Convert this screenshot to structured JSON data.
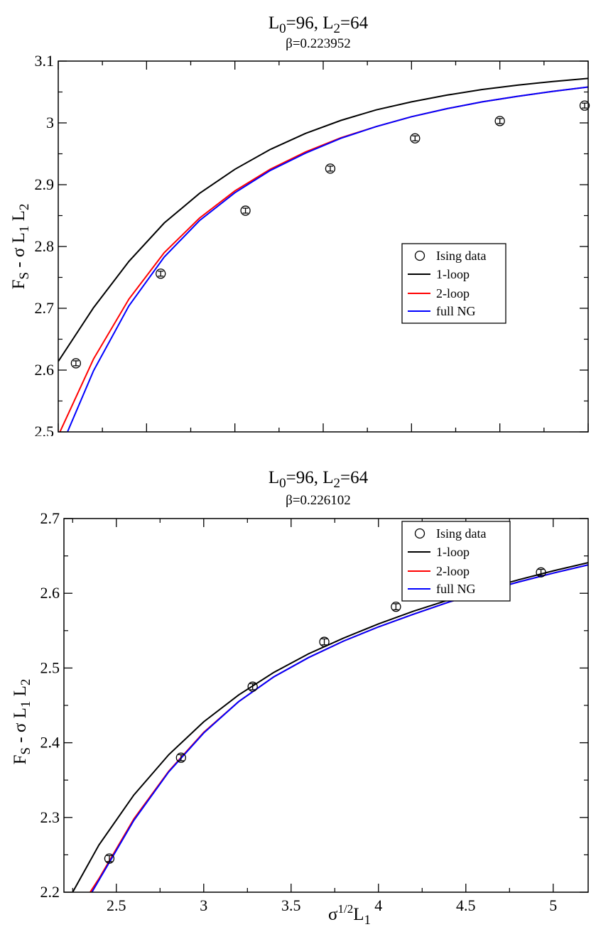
{
  "chart_data": [
    {
      "type": "scatter",
      "title": "L0=96,  L2=64",
      "title_parts": {
        "main": "L",
        "sub0": "0",
        "mid": "=96,  L",
        "sub2": "2",
        "tail": "=64"
      },
      "subtitle": "β=0.223952",
      "xlabel": "",
      "ylabel_parts": {
        "f": "F",
        "fs": "S",
        "mid": " - σ L",
        "l1": "1",
        "sp": " L",
        "l2": "2"
      },
      "xlim": [
        1.5,
        3.0
      ],
      "ylim": [
        2.5,
        3.1
      ],
      "xticks": [],
      "yticks": [
        2.5,
        2.6,
        2.7,
        2.8,
        2.9,
        3.0,
        3.1
      ],
      "ytick_labels": [
        "2.5",
        "2.6",
        "2.7",
        "2.8",
        "2.9",
        "3",
        "3.1"
      ],
      "legend_position": "center-right",
      "grid": false,
      "points": {
        "name": "Ising data",
        "x": [
          1.55,
          1.79,
          2.03,
          2.27,
          2.51,
          2.75,
          2.99
        ],
        "y": [
          2.611,
          2.756,
          2.858,
          2.926,
          2.975,
          3.003,
          3.028
        ],
        "err": [
          0.004,
          0.004,
          0.004,
          0.004,
          0.004,
          0.004,
          0.004
        ]
      },
      "curves": [
        {
          "name": "1-loop",
          "color": "#000000",
          "x": [
            1.5,
            1.6,
            1.7,
            1.8,
            1.9,
            2.0,
            2.1,
            2.2,
            2.3,
            2.4,
            2.5,
            2.6,
            2.7,
            2.8,
            2.9,
            3.0
          ],
          "y": [
            2.614,
            2.701,
            2.776,
            2.838,
            2.886,
            2.925,
            2.957,
            2.983,
            3.004,
            3.021,
            3.034,
            3.045,
            3.054,
            3.061,
            3.067,
            3.072
          ]
        },
        {
          "name": "2-loop",
          "color": "#ff0000",
          "x": [
            1.5,
            1.6,
            1.7,
            1.8,
            1.9,
            2.0,
            2.1,
            2.2,
            2.3,
            2.4,
            2.5,
            2.6,
            2.7,
            2.8,
            2.9,
            3.0
          ],
          "y": [
            2.494,
            2.618,
            2.715,
            2.79,
            2.846,
            2.89,
            2.925,
            2.953,
            2.976,
            2.994,
            3.01,
            3.023,
            3.034,
            3.043,
            3.051,
            3.058
          ]
        },
        {
          "name": "full NG",
          "color": "#0000ff",
          "x": [
            1.5,
            1.6,
            1.7,
            1.8,
            1.9,
            2.0,
            2.1,
            2.2,
            2.3,
            2.4,
            2.5,
            2.6,
            2.7,
            2.8,
            2.9,
            3.0
          ],
          "y": [
            2.465,
            2.599,
            2.704,
            2.783,
            2.842,
            2.887,
            2.923,
            2.951,
            2.975,
            2.994,
            3.01,
            3.023,
            3.034,
            3.043,
            3.051,
            3.058
          ]
        }
      ]
    },
    {
      "type": "scatter",
      "title": "L0=96,  L2=64",
      "title_parts": {
        "main": "L",
        "sub0": "0",
        "mid": "=96,  L",
        "sub2": "2",
        "tail": "=64"
      },
      "subtitle": "β=0.226102",
      "xlabel_parts": {
        "s": "σ",
        "sup": "1/2",
        "l": "L",
        "sub": "1"
      },
      "ylabel_parts": {
        "f": "F",
        "fs": "S",
        "mid": " - σ L",
        "l1": "1",
        "sp": " L",
        "l2": "2"
      },
      "xlim": [
        2.2,
        5.2
      ],
      "ylim": [
        2.2,
        2.7
      ],
      "xticks": [
        2.5,
        3.0,
        3.5,
        4.0,
        4.5,
        5.0
      ],
      "xtick_labels": [
        "2.5",
        "3",
        "3.5",
        "4",
        "4.5",
        "5"
      ],
      "yticks": [
        2.2,
        2.3,
        2.4,
        2.5,
        2.6,
        2.7
      ],
      "ytick_labels": [
        "2.2",
        "2.3",
        "2.4",
        "2.5",
        "2.6",
        "2.7"
      ],
      "legend_position": "center-right",
      "grid": false,
      "points": {
        "name": "Ising data",
        "x": [
          2.46,
          2.87,
          3.28,
          3.69,
          4.1,
          4.52,
          4.93
        ],
        "y": [
          2.245,
          2.38,
          2.475,
          2.535,
          2.582,
          2.605,
          2.628
        ],
        "err": [
          0.004,
          0.004,
          0.004,
          0.004,
          0.004,
          0.004,
          0.004
        ]
      },
      "curves": [
        {
          "name": "1-loop",
          "color": "#000000",
          "x": [
            2.25,
            2.4,
            2.6,
            2.8,
            3.0,
            3.2,
            3.4,
            3.6,
            3.8,
            4.0,
            4.2,
            4.4,
            4.6,
            4.8,
            5.0,
            5.2
          ],
          "y": [
            2.2,
            2.263,
            2.33,
            2.384,
            2.428,
            2.464,
            2.494,
            2.519,
            2.54,
            2.559,
            2.576,
            2.591,
            2.605,
            2.618,
            2.63,
            2.641
          ]
        },
        {
          "name": "2-loop",
          "color": "#ff0000",
          "x": [
            2.35,
            2.4,
            2.6,
            2.8,
            3.0,
            3.2,
            3.4,
            3.6,
            3.8,
            4.0,
            4.2,
            4.4,
            4.6,
            4.8,
            5.0,
            5.2
          ],
          "y": [
            2.2,
            2.218,
            2.298,
            2.362,
            2.414,
            2.455,
            2.488,
            2.514,
            2.536,
            2.555,
            2.572,
            2.588,
            2.602,
            2.615,
            2.627,
            2.638
          ]
        },
        {
          "name": "full NG",
          "color": "#0000ff",
          "x": [
            2.36,
            2.4,
            2.6,
            2.8,
            3.0,
            3.2,
            3.4,
            3.6,
            3.8,
            4.0,
            4.2,
            4.4,
            4.6,
            4.8,
            5.0,
            5.2
          ],
          "y": [
            2.2,
            2.216,
            2.296,
            2.361,
            2.413,
            2.455,
            2.488,
            2.514,
            2.536,
            2.555,
            2.572,
            2.588,
            2.602,
            2.615,
            2.627,
            2.638
          ]
        }
      ]
    }
  ]
}
